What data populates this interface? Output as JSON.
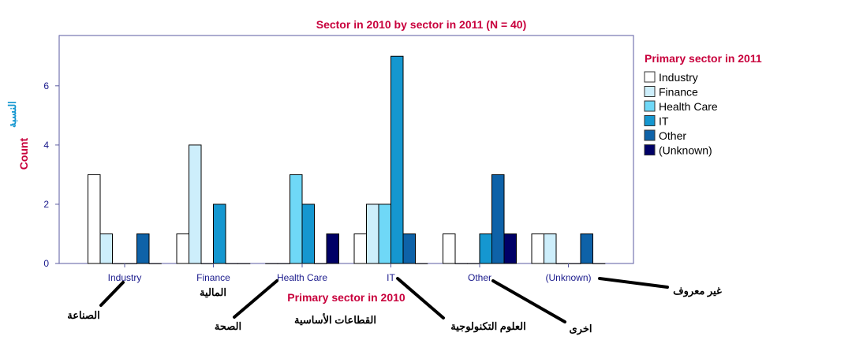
{
  "chart_data": {
    "type": "bar",
    "title": "Sector in 2010 by sector in 2011 (N = 40)",
    "xlabel": "Primary sector in 2010",
    "ylabel": "Count",
    "ylabel_ar": "النسبة",
    "ylim": [
      0,
      7.7
    ],
    "yticks": [
      0,
      2,
      4,
      6
    ],
    "categories": [
      "Industry",
      "Finance",
      "Health Care",
      "IT",
      "Other",
      "(Unknown)"
    ],
    "legend_title": "Primary sector in 2011",
    "legend_position": "right",
    "series": [
      {
        "name": "Industry",
        "color": "#ffffff",
        "values": [
          3,
          1,
          0,
          1,
          1,
          1
        ]
      },
      {
        "name": "Finance",
        "color": "#cdeefb",
        "values": [
          1,
          4,
          0,
          2,
          0,
          1
        ]
      },
      {
        "name": "Health Care",
        "color": "#6fd8f7",
        "values": [
          0,
          0,
          3,
          2,
          0,
          0
        ]
      },
      {
        "name": "IT",
        "color": "#1597d0",
        "values": [
          0,
          2,
          2,
          7,
          1,
          0
        ]
      },
      {
        "name": "Other",
        "color": "#0e62a8",
        "values": [
          1,
          0,
          0,
          1,
          3,
          1
        ]
      },
      {
        "name": "(Unknown)",
        "color": "#000066",
        "values": [
          0,
          0,
          1,
          0,
          1,
          0
        ]
      }
    ]
  },
  "annotations": {
    "industry": "الصناعة",
    "finance": "المالية",
    "health_care": "الصحة",
    "it": "العلوم التكنولوجية",
    "other": "اخرى",
    "unknown": "غير معروف",
    "xlabel_ar": "القطاعات الأساسية"
  }
}
